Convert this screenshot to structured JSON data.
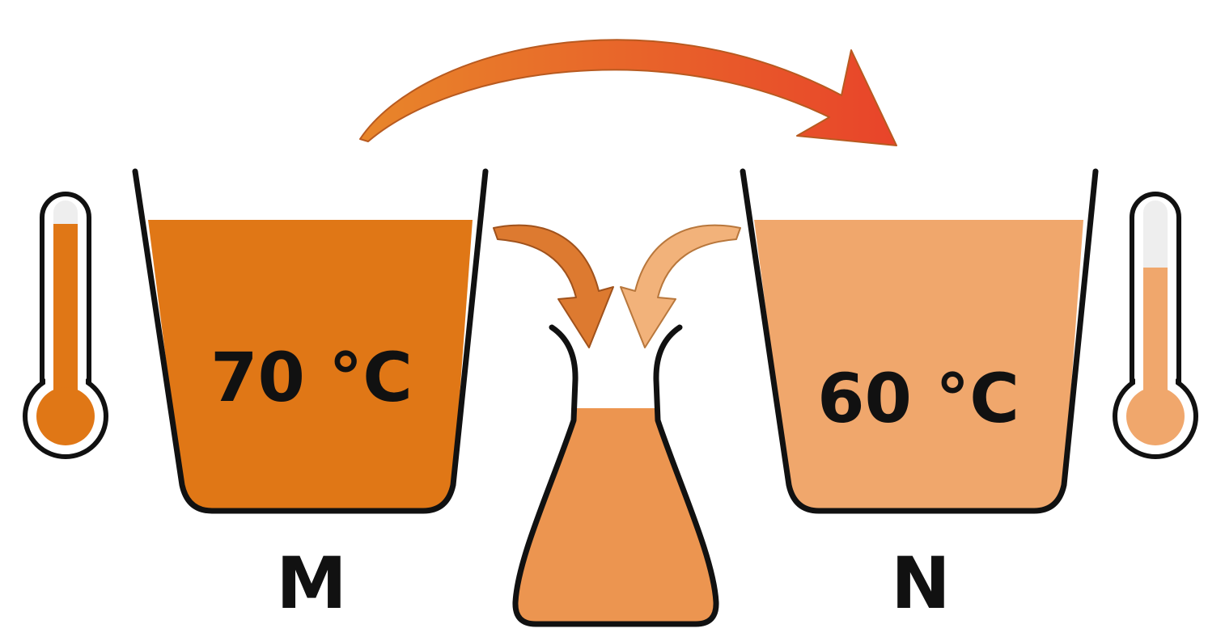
{
  "containers": [
    {
      "id": "M",
      "name_label": "M",
      "temperature_label": "70 °C",
      "temperature_c": 70,
      "liquid_color": "#e07716",
      "thermometer_fill_fraction": 0.9
    },
    {
      "id": "N",
      "name_label": "N",
      "temperature_label": "60 °C",
      "temperature_c": 60,
      "liquid_color": "#f0a76c",
      "thermometer_fill_fraction": 0.7
    }
  ],
  "flask": {
    "liquid_color": "#ec9550",
    "fill_fraction": 0.75
  },
  "arrows": {
    "top_arrow_from": "M",
    "top_arrow_to": "N",
    "top_arrow_gradient": [
      "#e8862a",
      "#e8442a"
    ],
    "pour_arrows": [
      {
        "from": "M",
        "to": "flask",
        "color": "#dd7a30"
      },
      {
        "from": "N",
        "to": "flask",
        "color": "#f2b27a"
      }
    ]
  },
  "colors": {
    "outline": "#111111",
    "thermo_glass": "#eeeeee"
  }
}
